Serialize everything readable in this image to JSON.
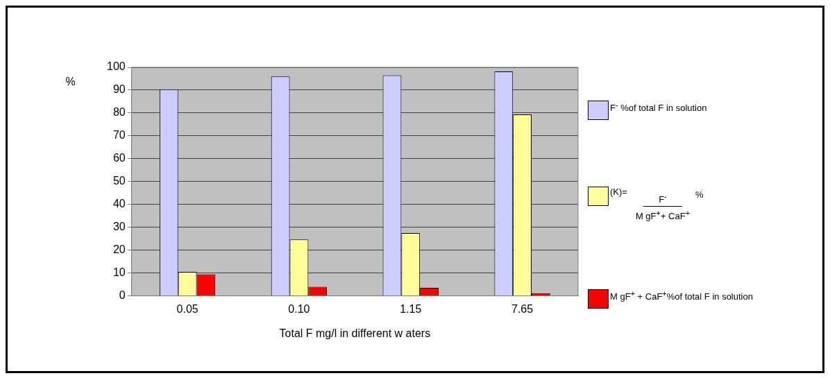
{
  "chart_data": {
    "type": "bar",
    "xlabel": "Total F mg/l in different w aters",
    "ylabel": "%",
    "categories": [
      "0.05",
      "0.10",
      "1.15",
      "7.65"
    ],
    "series": [
      {
        "name": "F$^{-}$ %of total F in solution",
        "color": "#ccccff",
        "values": [
          90.4,
          96,
          96.5,
          98.2
        ]
      },
      {
        "name": "(K)= F$^{-}$ M gF$^{+}$+ CaF$^{+}$ %",
        "color": "#ffff99",
        "values": [
          10.5,
          24.7,
          27.5,
          79.4
        ]
      },
      {
        "name": "M gF$^{+}$ + CaF$^{+}$%of total F in solution",
        "color": "#ff0000",
        "values": [
          9.4,
          4,
          3.5,
          1.2
        ]
      }
    ],
    "ylim": [
      0,
      100
    ],
    "yticks": [
      0,
      10,
      20,
      30,
      40,
      50,
      60,
      70,
      80,
      90,
      100
    ],
    "grid": "y",
    "legend": "right"
  }
}
